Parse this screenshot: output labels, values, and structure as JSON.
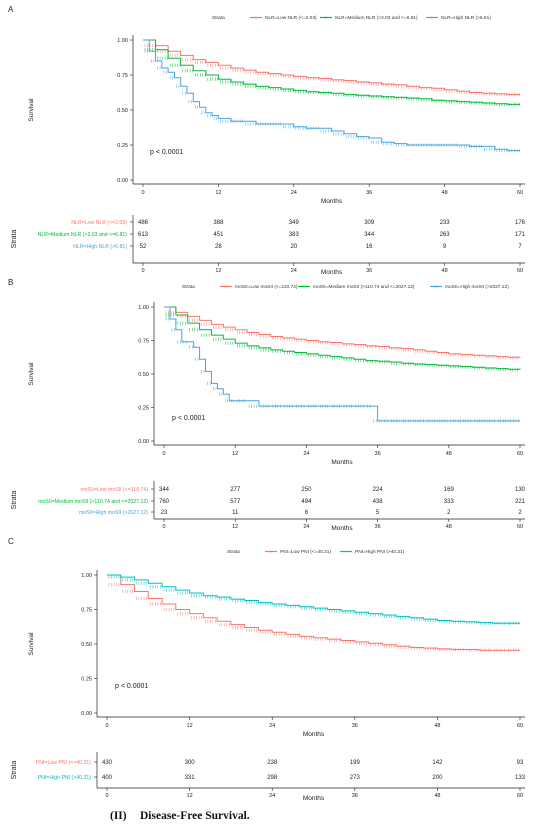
{
  "caption": {
    "number": "(II)",
    "text": "Disease-Free Survival."
  },
  "chart_data": [
    {
      "panel": "A",
      "type": "line",
      "ylabel": "Survival",
      "xlabel": "Months",
      "risk_xlabel": "Months",
      "risk_ylabel": "Strata",
      "legend_title": "Strata",
      "pvalue": "p < 0.0001",
      "xlim": [
        0,
        60
      ],
      "ylim": [
        0,
        1
      ],
      "x_ticks": [
        0,
        12,
        24,
        36,
        48,
        60
      ],
      "y_ticks": [
        "0.00",
        "0.25",
        "0.50",
        "0.75",
        "1.00"
      ],
      "series": [
        {
          "name": "NLR=Low NLR (<=2.03)",
          "risk_label": "NLR=Low NLR (<=2.03)",
          "color": "#f8766d",
          "x": [
            0,
            2,
            4,
            6,
            8,
            10,
            12,
            14,
            16,
            18,
            20,
            22,
            24,
            26,
            28,
            30,
            32,
            34,
            36,
            38,
            40,
            42,
            44,
            46,
            48,
            50,
            52,
            54,
            56,
            58,
            60
          ],
          "y": [
            1.0,
            0.96,
            0.92,
            0.89,
            0.86,
            0.84,
            0.82,
            0.8,
            0.785,
            0.77,
            0.76,
            0.75,
            0.74,
            0.73,
            0.725,
            0.715,
            0.71,
            0.7,
            0.695,
            0.685,
            0.68,
            0.67,
            0.66,
            0.655,
            0.645,
            0.635,
            0.625,
            0.62,
            0.615,
            0.61,
            0.61
          ],
          "at_risk": [
            486,
            388,
            349,
            309,
            233,
            176
          ]
        },
        {
          "name": "NLR=Medium NLR (>2.03 and <=6.81)",
          "risk_label": "NLR=Medium NLR (>2.03 and <=6.81)",
          "color": "#00ba38",
          "x": [
            0,
            2,
            4,
            6,
            8,
            10,
            12,
            14,
            16,
            18,
            20,
            22,
            24,
            26,
            28,
            30,
            32,
            34,
            36,
            38,
            40,
            42,
            44,
            46,
            48,
            50,
            52,
            54,
            56,
            58,
            60
          ],
          "y": [
            1.0,
            0.93,
            0.87,
            0.82,
            0.78,
            0.75,
            0.72,
            0.7,
            0.685,
            0.67,
            0.66,
            0.65,
            0.64,
            0.63,
            0.625,
            0.62,
            0.61,
            0.605,
            0.6,
            0.595,
            0.59,
            0.585,
            0.58,
            0.57,
            0.565,
            0.56,
            0.555,
            0.55,
            0.545,
            0.54,
            0.54
          ],
          "at_risk": [
            613,
            451,
            383,
            344,
            263,
            171
          ]
        },
        {
          "name": "NLR=High NLR (>6.81)",
          "risk_label": "NLR=High NLR (>6.81)",
          "color": "#4aa3df",
          "x": [
            0,
            1,
            2,
            3,
            4,
            5,
            6,
            7,
            8,
            9,
            10,
            11,
            12,
            14,
            16,
            18,
            20,
            22,
            24,
            26,
            28,
            30,
            32,
            34,
            36,
            38,
            40,
            42,
            44,
            46,
            48,
            50,
            52,
            54,
            56,
            58,
            60
          ],
          "y": [
            1.0,
            0.92,
            0.85,
            0.8,
            0.77,
            0.73,
            0.67,
            0.62,
            0.56,
            0.52,
            0.48,
            0.46,
            0.44,
            0.42,
            0.42,
            0.4,
            0.4,
            0.4,
            0.38,
            0.37,
            0.37,
            0.35,
            0.33,
            0.31,
            0.3,
            0.27,
            0.26,
            0.25,
            0.25,
            0.25,
            0.25,
            0.25,
            0.24,
            0.24,
            0.22,
            0.21,
            0.21
          ],
          "at_risk": [
            52,
            28,
            20,
            16,
            9,
            7
          ]
        }
      ]
    },
    {
      "panel": "B",
      "type": "line",
      "ylabel": "Survival",
      "xlabel": "Months",
      "risk_xlabel": "Months",
      "risk_ylabel": "Strata",
      "legend_title": "Strata",
      "pvalue": "p < 0.0001",
      "xlim": [
        0,
        60
      ],
      "ylim": [
        0,
        1
      ],
      "x_ticks": [
        0,
        12,
        24,
        36,
        48,
        60
      ],
      "y_ticks": [
        "0.00",
        "0.25",
        "0.50",
        "0.75",
        "1.00"
      ],
      "series": [
        {
          "name": "moSII=Low moSII (<=110.74)",
          "risk_label": "moSII=Low moSII (<=110.74)",
          "color": "#f8766d",
          "x": [
            0,
            2,
            4,
            6,
            8,
            10,
            12,
            14,
            16,
            18,
            20,
            22,
            24,
            26,
            28,
            30,
            32,
            34,
            36,
            38,
            40,
            42,
            44,
            46,
            48,
            50,
            52,
            54,
            56,
            58,
            60
          ],
          "y": [
            1.0,
            0.96,
            0.93,
            0.9,
            0.87,
            0.85,
            0.83,
            0.81,
            0.795,
            0.78,
            0.77,
            0.76,
            0.75,
            0.74,
            0.735,
            0.725,
            0.72,
            0.71,
            0.705,
            0.695,
            0.69,
            0.68,
            0.67,
            0.66,
            0.65,
            0.645,
            0.64,
            0.635,
            0.63,
            0.625,
            0.62
          ],
          "at_risk": [
            344,
            277,
            250,
            224,
            169,
            130
          ]
        },
        {
          "name": "moSII=Medium moSII (>110.74 and <=2027.12)",
          "risk_label": "moSII=Medium moSII (>110.74 and <=2027.12)",
          "color": "#00ba38",
          "x": [
            0,
            2,
            4,
            6,
            8,
            10,
            12,
            14,
            16,
            18,
            20,
            22,
            24,
            26,
            28,
            30,
            32,
            34,
            36,
            38,
            40,
            42,
            44,
            46,
            48,
            50,
            52,
            54,
            56,
            58,
            60
          ],
          "y": [
            1.0,
            0.94,
            0.88,
            0.83,
            0.79,
            0.76,
            0.73,
            0.71,
            0.695,
            0.68,
            0.67,
            0.66,
            0.65,
            0.64,
            0.63,
            0.62,
            0.61,
            0.6,
            0.595,
            0.59,
            0.58,
            0.575,
            0.57,
            0.565,
            0.56,
            0.555,
            0.55,
            0.545,
            0.54,
            0.535,
            0.53
          ],
          "at_risk": [
            760,
            577,
            494,
            438,
            333,
            221
          ]
        },
        {
          "name": "moSII=High moSII (>2027.12)",
          "risk_label": "moSII=High moSII (>2027.12)",
          "color": "#4aa3df",
          "x": [
            0,
            1,
            2,
            3,
            4,
            5,
            6,
            7,
            8,
            9,
            10,
            11,
            12,
            14,
            16,
            18,
            20,
            22,
            24,
            26,
            28,
            30,
            32,
            34,
            35,
            36,
            38,
            40,
            44,
            48,
            52,
            56,
            60
          ],
          "y": [
            1.0,
            0.91,
            0.83,
            0.74,
            0.74,
            0.7,
            0.61,
            0.52,
            0.43,
            0.39,
            0.35,
            0.3,
            0.3,
            0.3,
            0.26,
            0.26,
            0.26,
            0.26,
            0.26,
            0.26,
            0.26,
            0.26,
            0.26,
            0.26,
            0.26,
            0.15,
            0.15,
            0.15,
            0.15,
            0.15,
            0.15,
            0.15,
            0.15
          ],
          "at_risk": [
            23,
            11,
            6,
            5,
            2,
            2
          ]
        }
      ]
    },
    {
      "panel": "C",
      "type": "line",
      "ylabel": "Survival",
      "xlabel": "Months",
      "risk_xlabel": "Months",
      "risk_ylabel": "Strata",
      "legend_title": "Strata",
      "pvalue": "p < 0.0001",
      "xlim": [
        0,
        60
      ],
      "ylim": [
        0,
        1
      ],
      "x_ticks": [
        0,
        12,
        24,
        36,
        48,
        60
      ],
      "y_ticks": [
        "0.00",
        "0.25",
        "0.50",
        "0.75",
        "1.00"
      ],
      "series": [
        {
          "name": "PNI=Low PNI (<=40.31)",
          "risk_label": "PNI=Low PNI (<=40.31)",
          "color": "#f8766d",
          "x": [
            0,
            2,
            4,
            6,
            8,
            10,
            12,
            14,
            16,
            18,
            20,
            22,
            24,
            26,
            28,
            30,
            32,
            34,
            36,
            38,
            40,
            42,
            44,
            46,
            48,
            50,
            52,
            54,
            56,
            58,
            60
          ],
          "y": [
            1.0,
            0.93,
            0.88,
            0.83,
            0.79,
            0.75,
            0.72,
            0.69,
            0.665,
            0.64,
            0.62,
            0.6,
            0.585,
            0.57,
            0.555,
            0.545,
            0.535,
            0.525,
            0.515,
            0.505,
            0.495,
            0.485,
            0.475,
            0.47,
            0.465,
            0.46,
            0.46,
            0.455,
            0.455,
            0.455,
            0.455
          ],
          "at_risk": [
            430,
            300,
            238,
            199,
            142,
            93
          ]
        },
        {
          "name": "PNI=High PNI (>40.31)",
          "risk_label": "PNI=High PNI (>40.31)",
          "color": "#00bfc4",
          "x": [
            0,
            2,
            4,
            6,
            8,
            10,
            12,
            14,
            16,
            18,
            20,
            22,
            24,
            26,
            28,
            30,
            32,
            34,
            36,
            38,
            40,
            42,
            44,
            46,
            48,
            50,
            52,
            54,
            56,
            58,
            60
          ],
          "y": [
            1.0,
            0.985,
            0.965,
            0.94,
            0.915,
            0.89,
            0.87,
            0.85,
            0.84,
            0.825,
            0.815,
            0.8,
            0.79,
            0.78,
            0.77,
            0.76,
            0.75,
            0.74,
            0.73,
            0.72,
            0.71,
            0.7,
            0.69,
            0.68,
            0.67,
            0.665,
            0.66,
            0.655,
            0.65,
            0.65,
            0.65
          ],
          "at_risk": [
            400,
            331,
            298,
            273,
            200,
            133
          ]
        }
      ]
    }
  ]
}
